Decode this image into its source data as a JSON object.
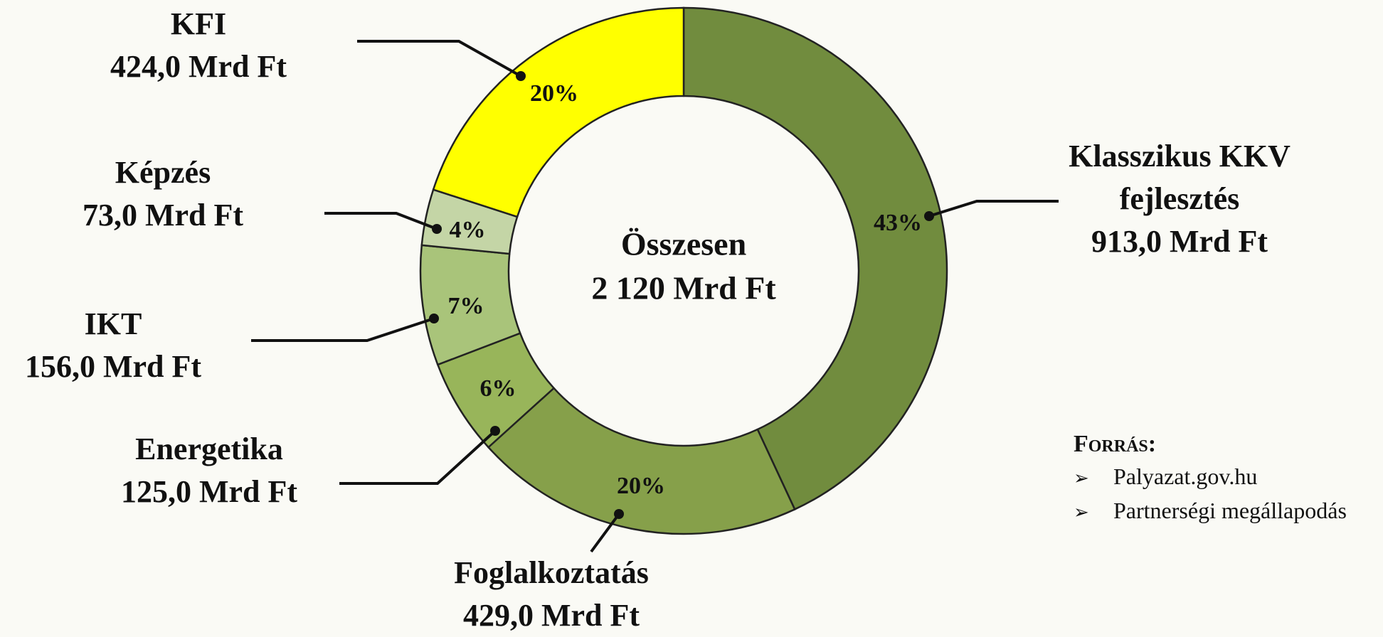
{
  "chart_data": {
    "type": "donut",
    "categories": [
      "Klasszikus KKV fejlesztés",
      "Foglalkoztatás",
      "Energetika",
      "IKT",
      "Képzés",
      "KFI"
    ],
    "values": [
      913,
      429,
      125,
      156,
      73,
      424
    ],
    "value_labels": [
      "913,0 Mrd Ft",
      "429,0 Mrd Ft",
      "125,0 Mrd Ft",
      "156,0 Mrd Ft",
      "73,0 Mrd Ft",
      "424,0 Mrd Ft"
    ],
    "percents": [
      43,
      20,
      6,
      7,
      4,
      20
    ],
    "percent_labels": [
      "43%",
      "20%",
      "6%",
      "7%",
      "4%",
      "20%"
    ],
    "colors": [
      "#718c3e",
      "#86a04a",
      "#98b55a",
      "#a9c47a",
      "#c4d5a6",
      "#ffff00"
    ],
    "center_title": "Összesen",
    "total": 2120,
    "total_label": "2 120 Mrd Ft"
  },
  "source": {
    "title": "Forrás:",
    "items": [
      "Palyazat.gov.hu",
      "Partnerségi megállapodás"
    ]
  }
}
